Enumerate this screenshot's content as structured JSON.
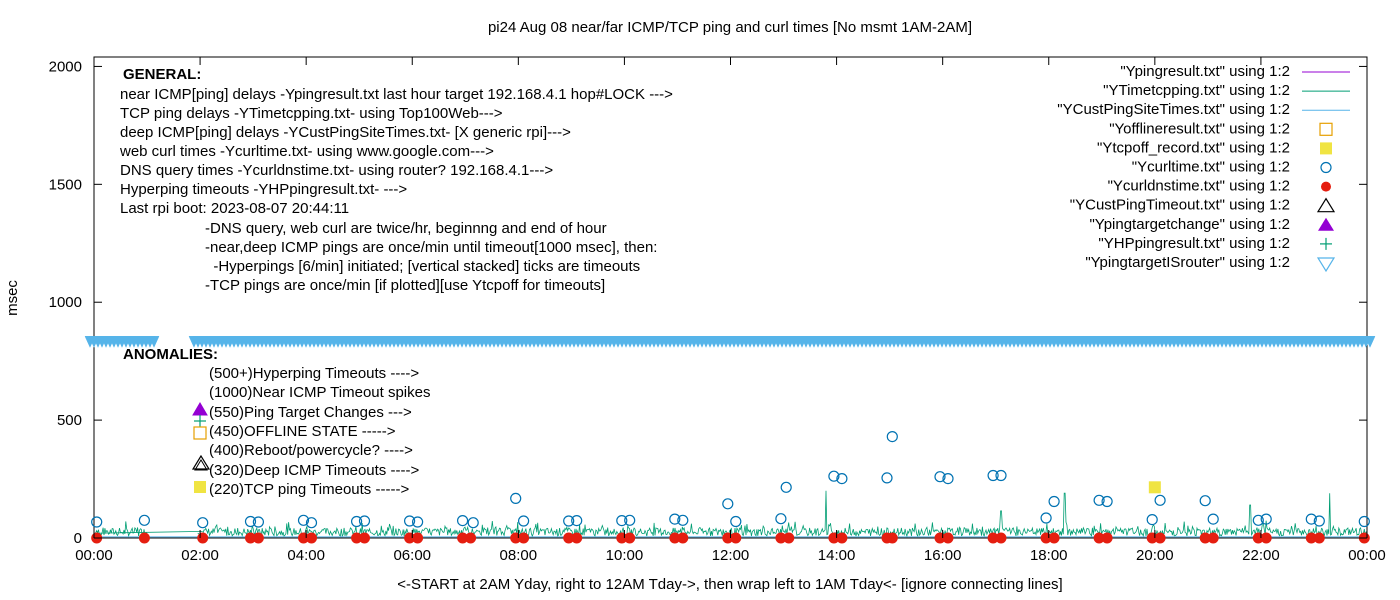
{
  "chart_data": {
    "type": "scatter",
    "title": "pi24 Aug 08  near/far ICMP/TCP ping and curl times [No msmt 1AM-2AM]",
    "xlabel": "<-START at 2AM Yday, right to 12AM Tday->, then wrap left to 1AM Tday<- [ignore connecting lines]",
    "ylabel": "msec",
    "xlim": [
      0,
      24
    ],
    "ylim": [
      0,
      2040
    ],
    "x_ticks": [
      "00:00",
      "02:00",
      "04:00",
      "06:00",
      "08:00",
      "10:00",
      "12:00",
      "14:00",
      "16:00",
      "18:00",
      "20:00",
      "22:00",
      "00:00"
    ],
    "y_ticks": [
      0,
      500,
      1000,
      1500,
      2000
    ],
    "grid": false,
    "legend_position": "top-right",
    "legend": [
      "\"Ypingresult.txt\" using 1:2",
      "\"YTimetcpping.txt\" using 1:2",
      "\"YCustPingSiteTimes.txt\" using 1:2",
      "\"Yofflineresult.txt\" using 1:2",
      "\"Ytcpoff_record.txt\" using 1:2",
      "\"Ycurltime.txt\" using 1:2",
      "\"Ycurldnstime.txt\" using 1:2",
      "\"YCustPingTimeout.txt\" using 1:2",
      "\"Ypingtargetchange\" using 1:2",
      "\"YHPpingresult.txt\" using 1:2",
      "\"YpingtargetISrouter\" using 1:2"
    ],
    "colors": {
      "ping": "#9400d3",
      "tcp": "#009e73",
      "custping": "#56b4e9",
      "offline": "#e69f00",
      "tcpoff": "#f0e442",
      "curl": "#0072b2",
      "dns": "#e51e10",
      "timeout": "#000000",
      "target": "#9400d3",
      "hpping": "#009e73",
      "isrouter": "#56b4e9"
    },
    "curl_points": [
      [
        0.05,
        68
      ],
      [
        0.95,
        75
      ],
      [
        2.05,
        65
      ],
      [
        2.95,
        70
      ],
      [
        3.1,
        68
      ],
      [
        3.95,
        75
      ],
      [
        4.1,
        65
      ],
      [
        4.95,
        70
      ],
      [
        5.1,
        72
      ],
      [
        5.95,
        72
      ],
      [
        6.1,
        68
      ],
      [
        6.95,
        74
      ],
      [
        7.15,
        65
      ],
      [
        7.95,
        168
      ],
      [
        8.1,
        72
      ],
      [
        8.95,
        72
      ],
      [
        9.1,
        74
      ],
      [
        9.95,
        74
      ],
      [
        10.1,
        75
      ],
      [
        10.95,
        80
      ],
      [
        11.1,
        75
      ],
      [
        11.95,
        145
      ],
      [
        12.1,
        70
      ],
      [
        12.95,
        82
      ],
      [
        13.05,
        215
      ],
      [
        13.95,
        262
      ],
      [
        14.1,
        252
      ],
      [
        14.95,
        255
      ],
      [
        15.05,
        430
      ],
      [
        15.95,
        260
      ],
      [
        16.1,
        252
      ],
      [
        16.95,
        265
      ],
      [
        17.1,
        265
      ],
      [
        17.95,
        85
      ],
      [
        18.1,
        155
      ],
      [
        18.95,
        160
      ],
      [
        19.1,
        155
      ],
      [
        19.95,
        78
      ],
      [
        20.1,
        160
      ],
      [
        20.95,
        158
      ],
      [
        21.1,
        80
      ],
      [
        21.95,
        75
      ],
      [
        22.1,
        80
      ],
      [
        22.95,
        80
      ],
      [
        23.1,
        72
      ],
      [
        23.95,
        70
      ]
    ],
    "dns_points": [
      [
        0.05,
        0
      ],
      [
        0.95,
        0
      ],
      [
        2.05,
        0
      ],
      [
        2.95,
        0
      ],
      [
        3.1,
        0
      ],
      [
        3.95,
        0
      ],
      [
        4.1,
        0
      ],
      [
        4.95,
        0
      ],
      [
        5.1,
        0
      ],
      [
        5.95,
        0
      ],
      [
        6.1,
        0
      ],
      [
        6.95,
        0
      ],
      [
        7.1,
        0
      ],
      [
        7.95,
        0
      ],
      [
        8.1,
        0
      ],
      [
        8.95,
        0
      ],
      [
        9.1,
        0
      ],
      [
        9.95,
        0
      ],
      [
        10.1,
        0
      ],
      [
        10.95,
        0
      ],
      [
        11.1,
        0
      ],
      [
        11.95,
        0
      ],
      [
        12.1,
        0
      ],
      [
        12.95,
        0
      ],
      [
        13.1,
        0
      ],
      [
        13.95,
        0
      ],
      [
        14.1,
        0
      ],
      [
        14.95,
        0
      ],
      [
        15.05,
        0
      ],
      [
        15.95,
        0
      ],
      [
        16.1,
        0
      ],
      [
        16.95,
        0
      ],
      [
        17.1,
        0
      ],
      [
        17.95,
        0
      ],
      [
        18.1,
        0
      ],
      [
        18.95,
        0
      ],
      [
        19.1,
        0
      ],
      [
        19.95,
        0
      ],
      [
        20.1,
        0
      ],
      [
        20.95,
        0
      ],
      [
        21.1,
        0
      ],
      [
        21.95,
        0
      ],
      [
        22.1,
        0
      ],
      [
        22.95,
        0
      ],
      [
        23.1,
        0
      ],
      [
        23.95,
        0
      ]
    ],
    "tcpoff_points": [
      [
        20.0,
        215
      ]
    ],
    "tcp_spikes": [
      [
        13.8,
        200
      ],
      [
        17.1,
        115
      ],
      [
        18.3,
        190
      ],
      [
        21.8,
        140
      ],
      [
        23.3,
        190
      ]
    ],
    "tcp_baseline_range": [
      0,
      70
    ],
    "isrouter_band": 830,
    "general_block": {
      "heading": "GENERAL:",
      "lines": [
        "near ICMP[ping] delays -Ypingresult.txt last hour target 192.168.4.1 hop#LOCK --->",
        "TCP ping delays -YTimetcpping.txt- using Top100Web--->",
        "deep ICMP[ping] delays -YCustPingSiteTimes.txt- [X generic rpi]--->",
        "web curl times -Ycurltime.txt- using www.google.com--->",
        "DNS query times -Ycurldnstime.txt- using router? 192.168.4.1--->",
        "Hyperping timeouts -YHPpingresult.txt- --->",
        "Last rpi boot: 2023-08-07 20:44:11"
      ],
      "notes": [
        "-DNS query, web curl are twice/hr, beginnng and end of hour",
        "-near,deep ICMP pings are once/min until timeout[1000 msec], then:",
        "  -Hyperpings [6/min] initiated; [vertical stacked] ticks are timeouts",
        "-TCP pings are once/min [if plotted][use Ytcpoff for timeouts]"
      ]
    },
    "anomalies_block": {
      "heading": "ANOMALIES:",
      "lines": [
        "(500+)Hyperping Timeouts ---->",
        "(1000)Near ICMP Timeout spikes",
        "(550)Ping Target Changes --->",
        "(450)OFFLINE STATE ----->",
        "(400)Reboot/powercycle? ---->",
        "(320)Deep ICMP Timeouts ---->",
        "(220)TCP ping Timeouts ----->"
      ]
    }
  }
}
